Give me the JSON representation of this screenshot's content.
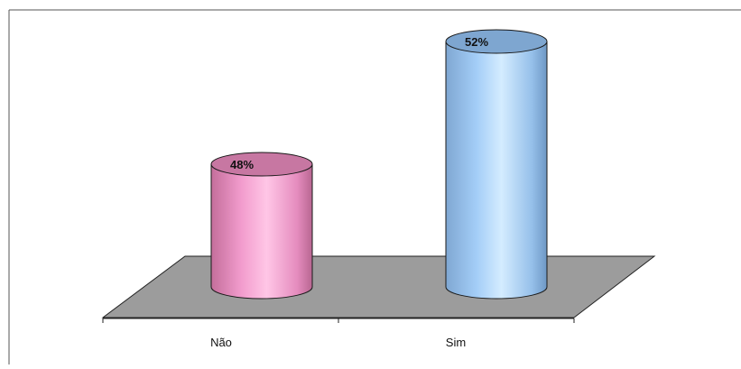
{
  "chart_data": {
    "type": "bar",
    "style": "3d-cylinder",
    "categories": [
      "Não",
      "Sim"
    ],
    "values": [
      48,
      52
    ],
    "value_labels": [
      "48%",
      "52%"
    ],
    "unit": "%",
    "title": "",
    "xlabel": "",
    "ylabel": "",
    "ylim": [
      44,
      52
    ],
    "grid": false,
    "legend": "none",
    "colors": [
      "#f29ccd",
      "#a3cdf7"
    ],
    "floor_color": "#9c9c9c"
  }
}
